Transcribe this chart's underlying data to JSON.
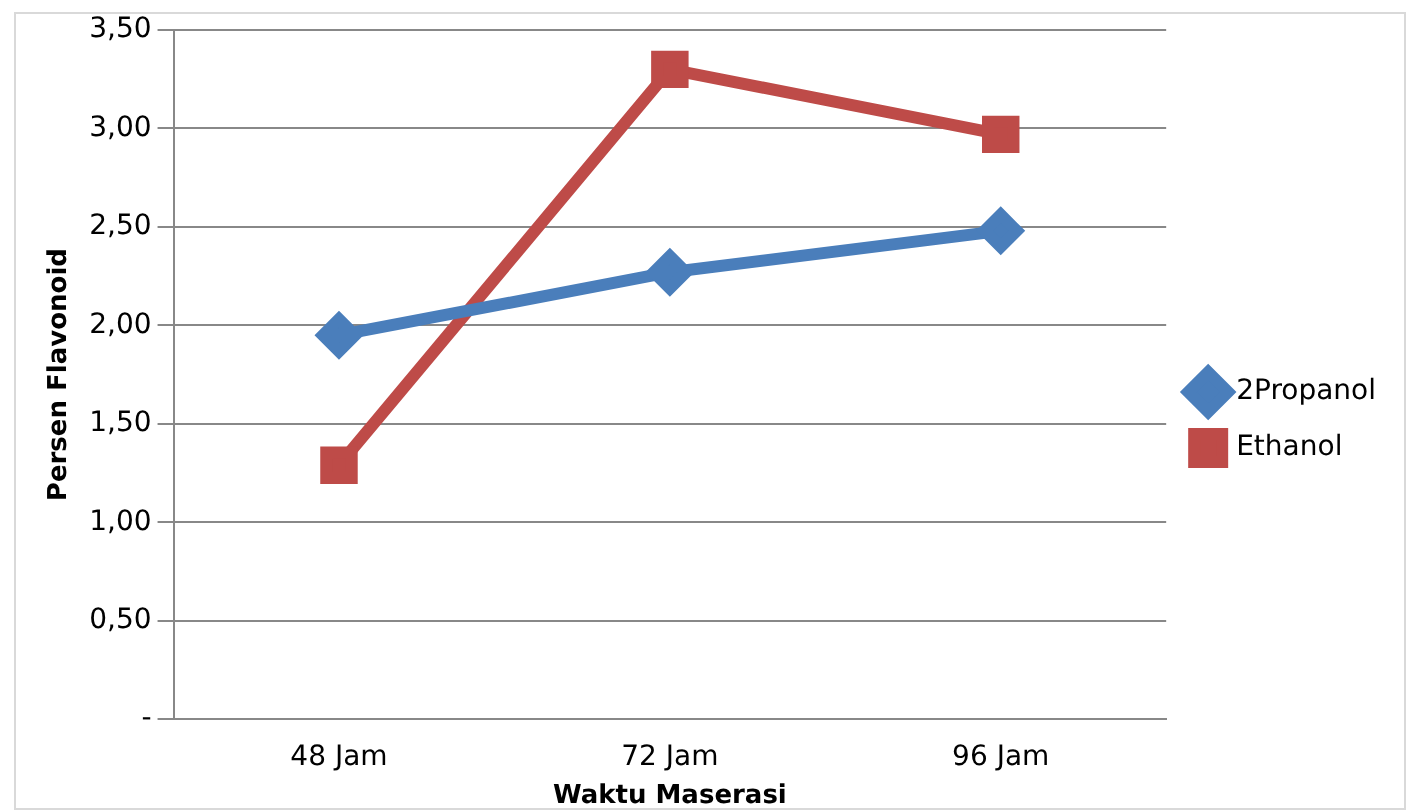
{
  "chart_data": {
    "type": "line",
    "xlabel": "Waktu Maserasi",
    "ylabel": "Persen Flavonoid",
    "categories": [
      "48 Jam",
      "72 Jam",
      "96 Jam"
    ],
    "series": [
      {
        "name": "2Propanol",
        "color": "#4a7ebb",
        "marker": "diamond",
        "values": [
          1.95,
          2.27,
          2.48
        ]
      },
      {
        "name": "Ethanol",
        "color": "#be4b48",
        "marker": "square",
        "values": [
          1.29,
          3.3,
          2.97
        ]
      }
    ],
    "ylim": [
      0,
      3.5
    ],
    "yticks": [
      {
        "value": 0,
        "label": "-"
      },
      {
        "value": 0.5,
        "label": "0,50"
      },
      {
        "value": 1,
        "label": "1,00"
      },
      {
        "value": 1.5,
        "label": "1,50"
      },
      {
        "value": 2,
        "label": "2,00"
      },
      {
        "value": 2.5,
        "label": "2,50"
      },
      {
        "value": 3,
        "label": "3,00"
      },
      {
        "value": 3.5,
        "label": "3,50"
      }
    ],
    "grid": "y",
    "legend": "right",
    "line_style": "solid"
  }
}
